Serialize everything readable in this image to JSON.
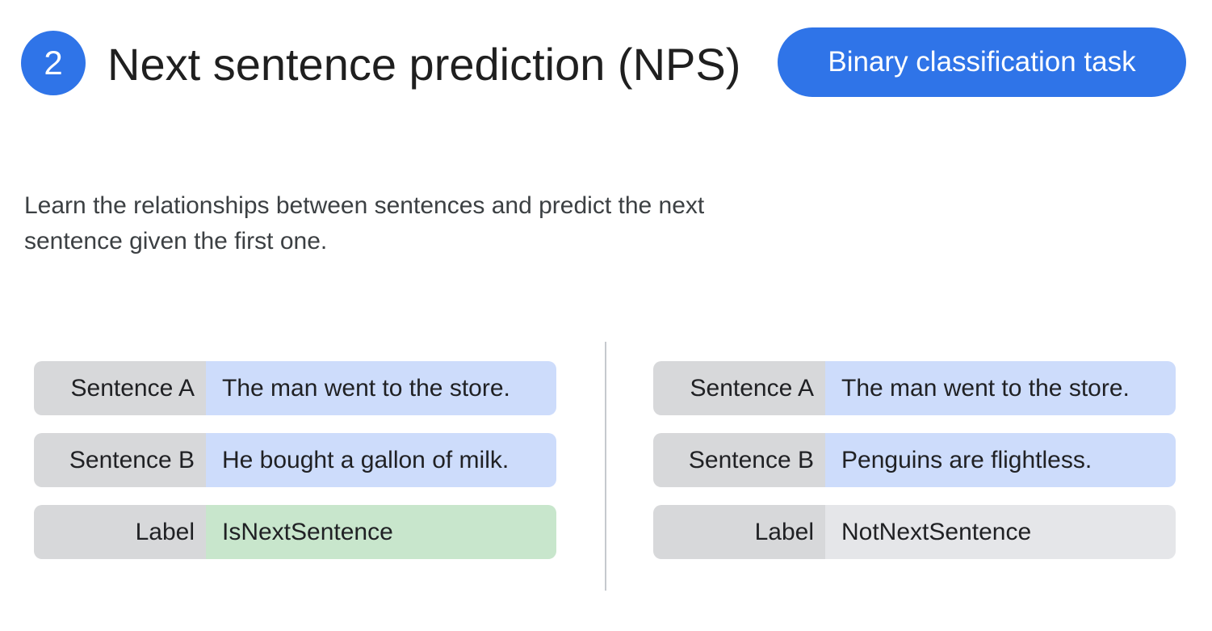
{
  "header": {
    "step_number": "2",
    "title": "Next sentence prediction (NPS)",
    "task_pill": "Binary classification task"
  },
  "description": "Learn the relationships between sentences and predict the next sentence given the first one.",
  "examples": [
    {
      "sentence_a_label": "Sentence A",
      "sentence_a": "The man went to the store.",
      "sentence_b_label": "Sentence B",
      "sentence_b": "He bought a gallon of milk.",
      "label_key": "Label",
      "label_value": "IsNextSentence"
    },
    {
      "sentence_a_label": "Sentence A",
      "sentence_a": "The man went to the store.",
      "sentence_b_label": "Sentence B",
      "sentence_b": "Penguins are flightless.",
      "label_key": "Label",
      "label_value": "NotNextSentence"
    }
  ],
  "colors": {
    "accent_blue": "#2f74e8",
    "key_gray": "#d7d8da",
    "sentence_blue": "#cddcfb",
    "positive_green": "#c8e6cc",
    "negative_gray": "#e5e6e9"
  }
}
